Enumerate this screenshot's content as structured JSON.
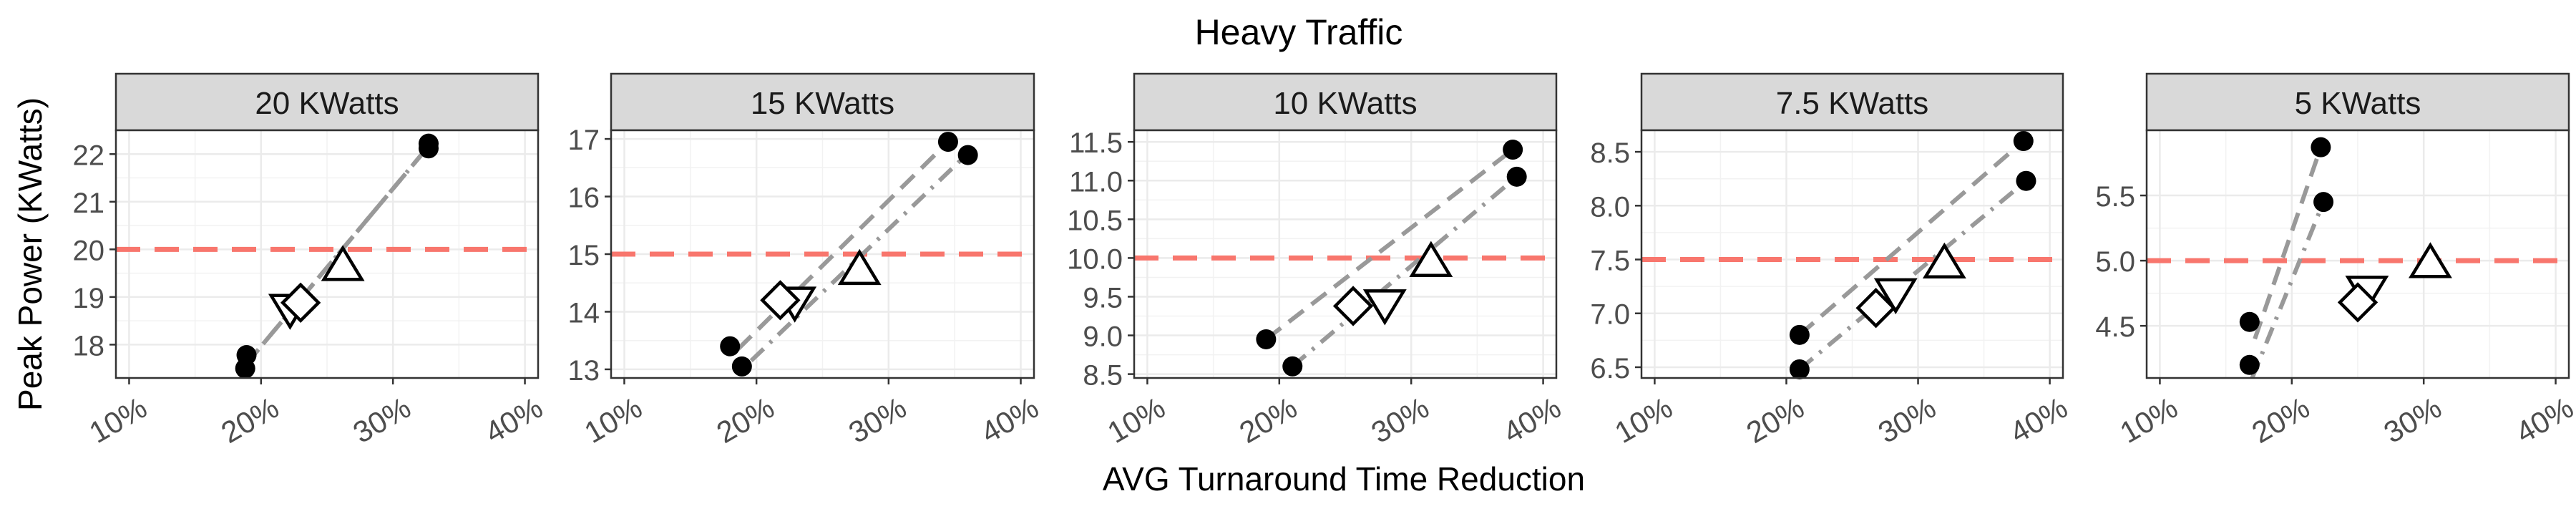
{
  "figure": {
    "title": "Heavy Traffic",
    "xlabel": "AVG Turnaround Time Reduction",
    "ylabel": "Peak Power (KWatts)"
  },
  "colors": {
    "threshold": "#f8766d",
    "trend": "#999999",
    "point": "#000000",
    "strip_bg": "#d9d9d9",
    "grid": "#ebebeb"
  },
  "chart_data": [
    {
      "type": "scatter",
      "panel_label": "20 KWatts",
      "xlim": [
        0.09,
        0.41
      ],
      "x_ticks": [
        0.1,
        0.2,
        0.3,
        0.4
      ],
      "x_tick_labels": [
        "10%",
        "20%",
        "30%",
        "40%"
      ],
      "ylim": [
        17.3,
        22.5
      ],
      "y_ticks": [
        18,
        19,
        20,
        21,
        22
      ],
      "y_tick_labels": [
        "18",
        "19",
        "20",
        "21",
        "22"
      ],
      "threshold": 20,
      "series": [
        {
          "marker": "circle",
          "points": [
            [
              0.188,
              17.5
            ],
            [
              0.189,
              17.78
            ],
            [
              0.327,
              22.12
            ],
            [
              0.327,
              22.22
            ]
          ]
        },
        {
          "marker": "triangle-down",
          "points": [
            [
              0.222,
              18.78
            ]
          ]
        },
        {
          "marker": "diamond",
          "points": [
            [
              0.23,
              18.88
            ]
          ]
        },
        {
          "marker": "triangle-up",
          "points": [
            [
              0.262,
              19.62
            ]
          ]
        }
      ],
      "trend_lines": [
        {
          "style": "dashed",
          "from": [
            0.189,
            17.6
          ],
          "to": [
            0.325,
            22.1
          ]
        },
        {
          "style": "dotdash",
          "from": [
            0.189,
            17.6
          ],
          "to": [
            0.325,
            22.1
          ]
        }
      ]
    },
    {
      "type": "scatter",
      "panel_label": "15 KWatts",
      "xlim": [
        0.09,
        0.41
      ],
      "x_ticks": [
        0.1,
        0.2,
        0.3,
        0.4
      ],
      "x_tick_labels": [
        "10%",
        "20%",
        "30%",
        "40%"
      ],
      "ylim": [
        12.85,
        17.15
      ],
      "y_ticks": [
        13,
        14,
        15,
        16,
        17
      ],
      "y_tick_labels": [
        "13",
        "14",
        "15",
        "16",
        "17"
      ],
      "threshold": 15,
      "series": [
        {
          "marker": "circle",
          "points": [
            [
              0.18,
              13.4
            ],
            [
              0.189,
              13.05
            ],
            [
              0.345,
              16.95
            ],
            [
              0.36,
              16.72
            ]
          ]
        },
        {
          "marker": "triangle-down",
          "points": [
            [
              0.229,
              14.2
            ]
          ]
        },
        {
          "marker": "diamond",
          "points": [
            [
              0.218,
              14.2
            ]
          ]
        },
        {
          "marker": "triangle-up",
          "points": [
            [
              0.278,
              14.7
            ]
          ]
        }
      ],
      "trend_lines": [
        {
          "style": "dashed",
          "from": [
            0.186,
            13.35
          ],
          "to": [
            0.345,
            16.95
          ]
        },
        {
          "style": "dotdash",
          "from": [
            0.196,
            13.15
          ],
          "to": [
            0.36,
            16.75
          ]
        }
      ]
    },
    {
      "type": "scatter",
      "panel_label": "10 KWatts",
      "xlim": [
        0.09,
        0.41
      ],
      "x_ticks": [
        0.1,
        0.2,
        0.3,
        0.4
      ],
      "x_tick_labels": [
        "10%",
        "20%",
        "30%",
        "40%"
      ],
      "ylim": [
        8.45,
        11.65
      ],
      "y_ticks": [
        8.5,
        9.0,
        9.5,
        10.0,
        10.5,
        11.0,
        11.5
      ],
      "y_tick_labels": [
        "8.5",
        "9.0",
        "9.5",
        "10.0",
        "10.5",
        "11.0",
        "11.5"
      ],
      "threshold": 10,
      "series": [
        {
          "marker": "circle",
          "points": [
            [
              0.19,
              8.95
            ],
            [
              0.21,
              8.6
            ],
            [
              0.377,
              11.4
            ],
            [
              0.38,
              11.05
            ]
          ]
        },
        {
          "marker": "triangle-down",
          "points": [
            [
              0.28,
              9.42
            ]
          ]
        },
        {
          "marker": "diamond",
          "points": [
            [
              0.256,
              9.38
            ]
          ]
        },
        {
          "marker": "triangle-up",
          "points": [
            [
              0.315,
              9.93
            ]
          ]
        }
      ],
      "trend_lines": [
        {
          "style": "dashed",
          "from": [
            0.19,
            8.95
          ],
          "to": [
            0.377,
            11.4
          ]
        },
        {
          "style": "dotdash",
          "from": [
            0.21,
            8.6
          ],
          "to": [
            0.38,
            11.05
          ]
        }
      ]
    },
    {
      "type": "scatter",
      "panel_label": "7.5 KWatts",
      "xlim": [
        0.09,
        0.41
      ],
      "x_ticks": [
        0.1,
        0.2,
        0.3,
        0.4
      ],
      "x_tick_labels": [
        "10%",
        "20%",
        "30%",
        "40%"
      ],
      "ylim": [
        6.4,
        8.7
      ],
      "y_ticks": [
        6.5,
        7.0,
        7.5,
        8.0,
        8.5
      ],
      "y_tick_labels": [
        "6.5",
        "7.0",
        "7.5",
        "8.0",
        "8.5"
      ],
      "threshold": 7.5,
      "series": [
        {
          "marker": "circle",
          "points": [
            [
              0.21,
              6.8
            ],
            [
              0.21,
              6.48
            ],
            [
              0.38,
              8.6
            ],
            [
              0.382,
              8.23
            ]
          ]
        },
        {
          "marker": "triangle-down",
          "points": [
            [
              0.283,
              7.2
            ]
          ]
        },
        {
          "marker": "diamond",
          "points": [
            [
              0.268,
              7.05
            ]
          ]
        },
        {
          "marker": "triangle-up",
          "points": [
            [
              0.32,
              7.45
            ]
          ]
        }
      ],
      "trend_lines": [
        {
          "style": "dashed",
          "from": [
            0.21,
            6.8
          ],
          "to": [
            0.38,
            8.6
          ]
        },
        {
          "style": "dotdash",
          "from": [
            0.21,
            6.48
          ],
          "to": [
            0.382,
            8.23
          ]
        }
      ]
    },
    {
      "type": "scatter",
      "panel_label": "5 KWatts",
      "xlim": [
        0.09,
        0.41
      ],
      "x_ticks": [
        0.1,
        0.2,
        0.3,
        0.4
      ],
      "x_tick_labels": [
        "10%",
        "20%",
        "30%",
        "40%"
      ],
      "ylim": [
        4.1,
        6.0
      ],
      "y_ticks": [
        4.5,
        5.0,
        5.5
      ],
      "y_tick_labels": [
        "4.5",
        "5.0",
        "5.5"
      ],
      "threshold": 5,
      "series": [
        {
          "marker": "circle",
          "points": [
            [
              0.168,
              4.53
            ],
            [
              0.168,
              4.2
            ],
            [
              0.222,
              5.87
            ],
            [
              0.224,
              5.45
            ]
          ]
        },
        {
          "marker": "triangle-down",
          "points": [
            [
              0.257,
              4.78
            ]
          ]
        },
        {
          "marker": "diamond",
          "points": [
            [
              0.25,
              4.68
            ]
          ]
        },
        {
          "marker": "triangle-up",
          "points": [
            [
              0.305,
              4.97
            ]
          ]
        }
      ],
      "trend_lines": [
        {
          "style": "dashed",
          "from": [
            0.172,
            4.4
          ],
          "to": [
            0.222,
            5.87
          ]
        },
        {
          "style": "dotdash",
          "from": [
            0.17,
            4.1
          ],
          "to": [
            0.224,
            5.45
          ]
        }
      ]
    }
  ]
}
